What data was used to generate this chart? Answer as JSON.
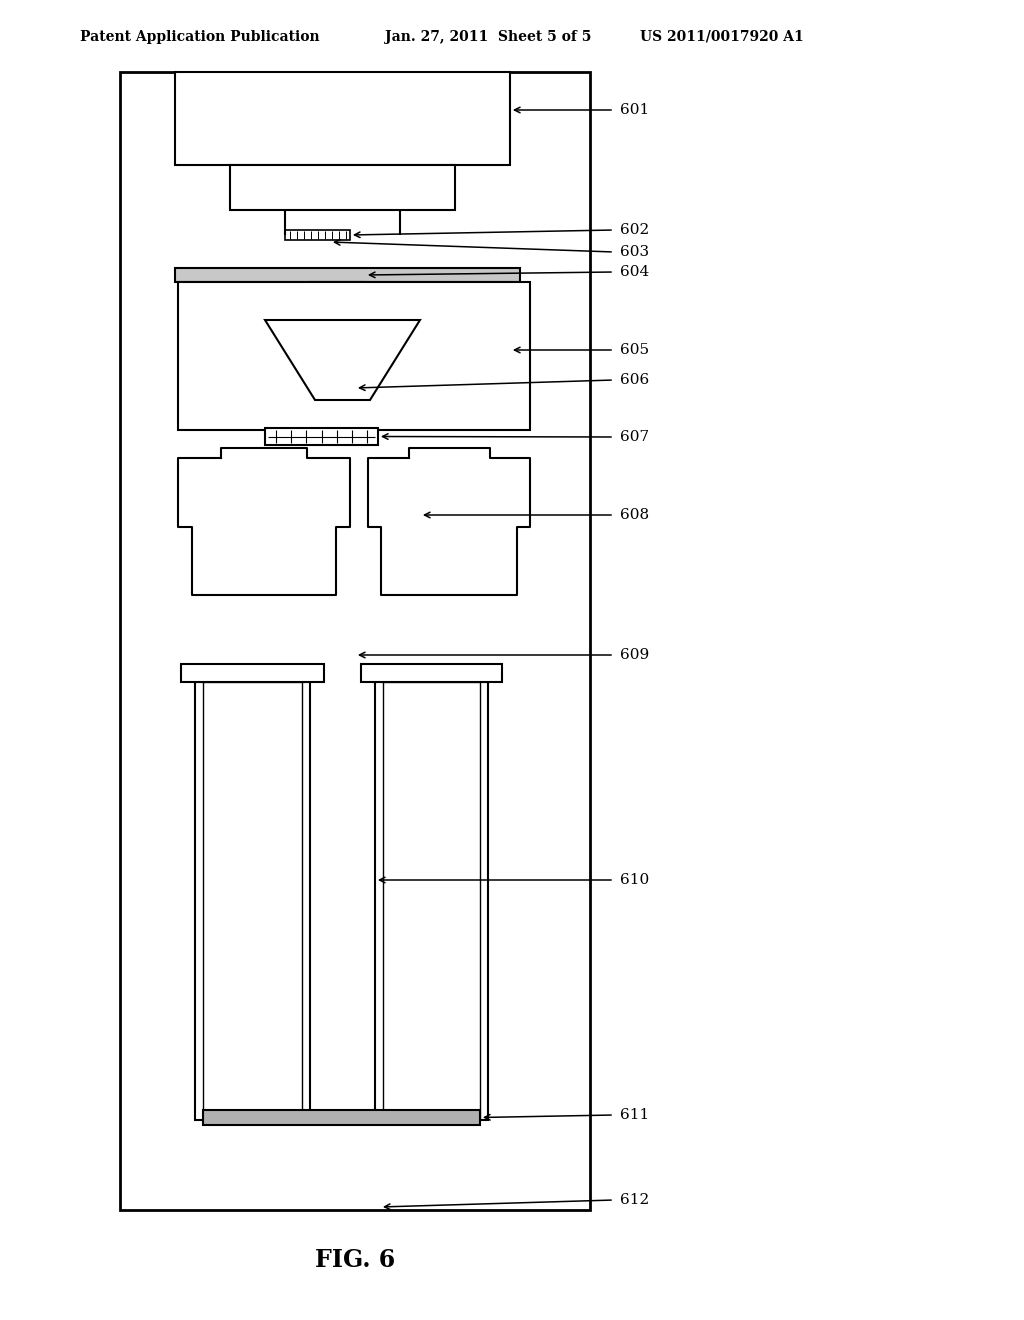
{
  "bg_color": "#ffffff",
  "line_color": "#000000",
  "header_left": "Patent Application Publication",
  "header_mid": "Jan. 27, 2011  Sheet 5 of 5",
  "header_right": "US 2011/0017920 A1",
  "figure_label": "FIG. 6"
}
